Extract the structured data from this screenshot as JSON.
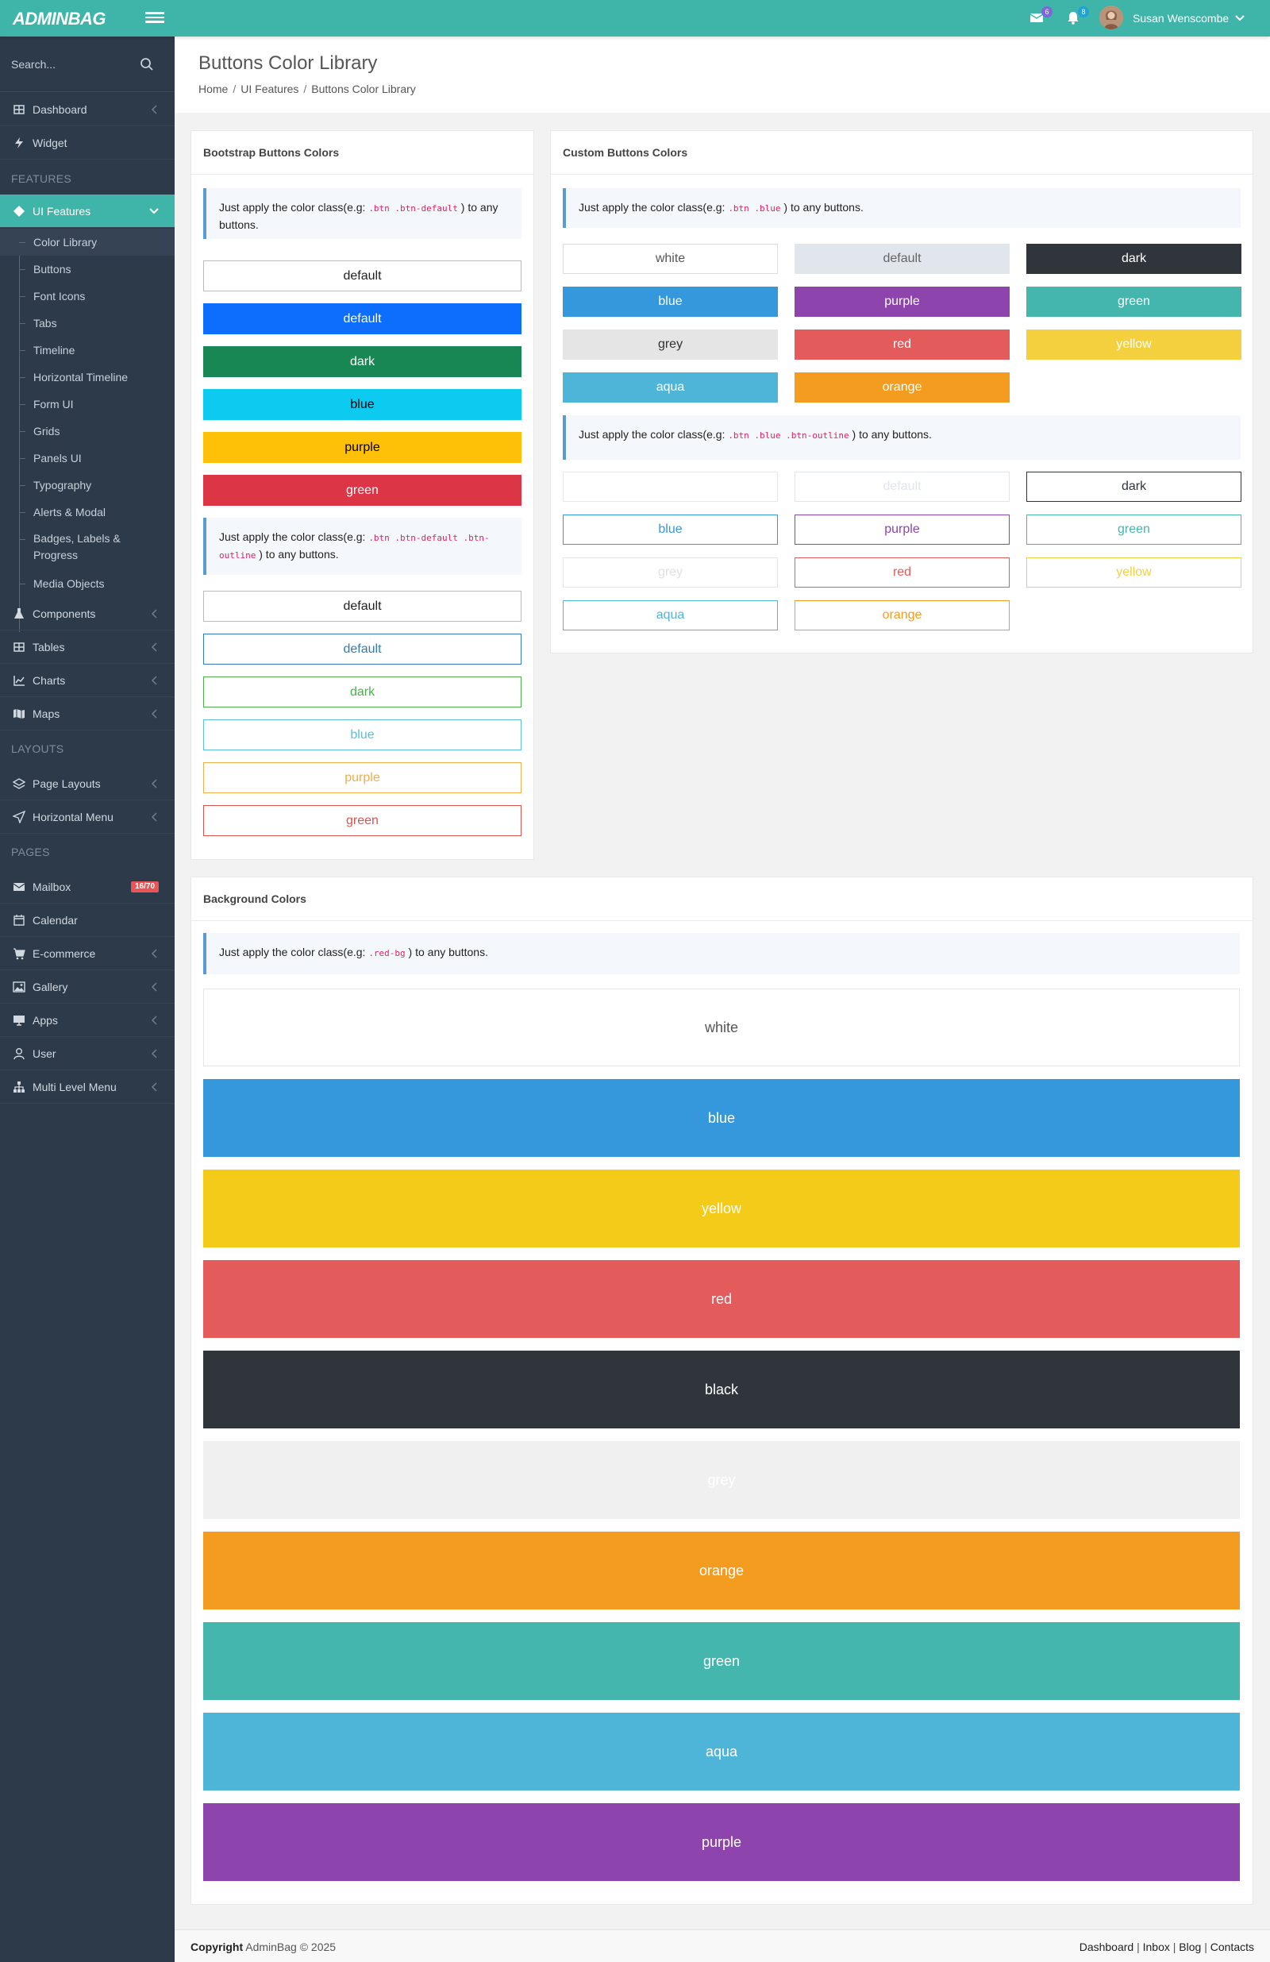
{
  "header": {
    "logo": "ADMINBAG",
    "mail_badge": "6",
    "bell_badge": "8",
    "user_name": "Susan Wenscombe"
  },
  "sidebar": {
    "search_placeholder": "Search...",
    "items_top": [
      {
        "label": "Dashboard",
        "icon": "dashboard-icon"
      },
      {
        "label": "Widget",
        "icon": "bolt-icon"
      }
    ],
    "section_features": "FEATURES",
    "ui_features": "UI Features",
    "sub_items": [
      "Color Library",
      "Buttons",
      "Font Icons",
      "Tabs",
      "Timeline",
      "Horizontal Timeline",
      "Form UI",
      "Grids",
      "Panels UI",
      "Typography",
      "Alerts & Modal",
      "Badges, Labels &",
      "Progress",
      "Media Objects"
    ],
    "items_features": [
      {
        "label": "Components",
        "icon": "flask-icon"
      },
      {
        "label": "Tables",
        "icon": "table-icon"
      },
      {
        "label": "Charts",
        "icon": "chart-icon"
      },
      {
        "label": "Maps",
        "icon": "map-icon"
      }
    ],
    "section_layouts": "LAYOUTS",
    "items_layouts": [
      {
        "label": "Page Layouts",
        "icon": "layers-icon"
      },
      {
        "label": "Horizontal Menu",
        "icon": "send-icon"
      }
    ],
    "section_pages": "PAGES",
    "items_pages": [
      {
        "label": "Mailbox",
        "icon": "envelope-icon"
      },
      {
        "label": "Calendar",
        "icon": "calendar-icon"
      },
      {
        "label": "E-commerce",
        "icon": "cart-icon"
      },
      {
        "label": "Gallery",
        "icon": "image-icon"
      },
      {
        "label": "Apps",
        "icon": "monitor-icon"
      },
      {
        "label": "User",
        "icon": "user-icon"
      },
      {
        "label": "Multi Level Menu",
        "icon": "sitemap-icon"
      }
    ],
    "mailbox_badge": "16/70"
  },
  "page": {
    "title": "Buttons Color Library",
    "breadcrumb": [
      "Home",
      "UI Features",
      "Buttons Color Library"
    ]
  },
  "bootstrap_card": {
    "title": "Bootstrap Buttons Colors",
    "note1_pre": "Just apply the color class(e.g: ",
    "note1_code": ".btn .btn-default",
    "note1_post": " ) to any buttons.",
    "solid_buttons": [
      {
        "label": "default",
        "bg": "#ffffff",
        "fg": "#222222",
        "border": "#bbbbbb"
      },
      {
        "label": "default",
        "bg": "#0d6efd",
        "fg": "#ffffff",
        "border": "#0d6efd"
      },
      {
        "label": "dark",
        "bg": "#198754",
        "fg": "#ffffff",
        "border": "#198754"
      },
      {
        "label": "blue",
        "bg": "#0dcaf0",
        "fg": "#000000",
        "border": "#0dcaf0"
      },
      {
        "label": "purple",
        "bg": "#ffc107",
        "fg": "#000000",
        "border": "#ffc107"
      },
      {
        "label": "green",
        "bg": "#dc3545",
        "fg": "#ffffff",
        "border": "#dc3545"
      }
    ],
    "note2_pre": "Just apply the color class(e.g: ",
    "note2_code": ".btn .btn-default .btn-outline",
    "note2_post": " ) to any buttons.",
    "outline_buttons": [
      {
        "label": "default",
        "color": "#222222",
        "border": "#bbbbbb"
      },
      {
        "label": "default",
        "color": "#337ab7",
        "border": "#337ab7"
      },
      {
        "label": "dark",
        "color": "#4cae4c",
        "border": "#4cae4c"
      },
      {
        "label": "blue",
        "color": "#5bc0de",
        "border": "#5bc0de"
      },
      {
        "label": "purple",
        "color": "#f0ad4e",
        "border": "#f0ad4e"
      },
      {
        "label": "green",
        "color": "#d9534f",
        "border": "#d9534f"
      }
    ]
  },
  "custom_card": {
    "title": "Custom Buttons Colors",
    "note1_pre": "Just apply the color class(e.g: ",
    "note1_code": ".btn .blue",
    "note1_post": " ) to any buttons.",
    "solid_buttons": [
      {
        "label": "white",
        "bg": "#ffffff",
        "fg": "#555555",
        "border": "#dddddd"
      },
      {
        "label": "default",
        "bg": "#e1e5ec",
        "fg": "#666666",
        "border": "#e1e5ec"
      },
      {
        "label": "dark",
        "bg": "#2f353b",
        "fg": "#ffffff",
        "border": "#2f353b"
      },
      {
        "label": "blue",
        "bg": "#3598dc",
        "fg": "#ffffff",
        "border": "#3598dc"
      },
      {
        "label": "purple",
        "bg": "#8e44ad",
        "fg": "#ffffff",
        "border": "#8e44ad"
      },
      {
        "label": "green",
        "bg": "#44b6ae",
        "fg": "#ffffff",
        "border": "#44b6ae"
      },
      {
        "label": "grey",
        "bg": "#e5e5e5",
        "fg": "#333333",
        "border": "#e5e5e5"
      },
      {
        "label": "red",
        "bg": "#e35b5a",
        "fg": "#ffffff",
        "border": "#e35b5a"
      },
      {
        "label": "yellow",
        "bg": "#f4d03f",
        "fg": "#ffffff",
        "border": "#f4d03f"
      },
      {
        "label": "aqua",
        "bg": "#4fb5d8",
        "fg": "#ffffff",
        "border": "#4fb5d8"
      },
      {
        "label": "orange",
        "bg": "#f39c1f",
        "fg": "#ffffff",
        "border": "#f39c1f"
      }
    ],
    "note2_pre": "Just apply the color class(e.g: ",
    "note2_code": ".btn .blue .btn-outline",
    "note2_post": " ) to any buttons.",
    "outline_buttons": [
      {
        "label": "",
        "color": "#dddddd",
        "border": "#e8e8e8"
      },
      {
        "label": "default",
        "color": "#e1e5ec",
        "border": "#e1e5ec"
      },
      {
        "label": "dark",
        "color": "#2f353b",
        "border": "#2f353b"
      },
      {
        "label": "blue",
        "color": "#3598dc",
        "border": "#3598dc"
      },
      {
        "label": "purple",
        "color": "#8e44ad",
        "border": "#8e44ad"
      },
      {
        "label": "green",
        "color": "#44b6ae",
        "border": "#44b6ae"
      },
      {
        "label": "grey",
        "color": "#e0e0e0",
        "border": "#e5e5e5"
      },
      {
        "label": "red",
        "color": "#e35b5a",
        "border": "#e35b5a"
      },
      {
        "label": "yellow",
        "color": "#f4d03f",
        "border": "#f4d03f"
      },
      {
        "label": "aqua",
        "color": "#4fb5d8",
        "border": "#4fb5d8"
      },
      {
        "label": "orange",
        "color": "#f39c1f",
        "border": "#f39c1f"
      }
    ]
  },
  "background_card": {
    "title": "Background Colors",
    "note_pre": "Just apply the color class(e.g: ",
    "note_code": ".red-bg",
    "note_post": " ) to any buttons.",
    "blocks": [
      {
        "label": "white",
        "bg": "#ffffff",
        "fg": "#555555"
      },
      {
        "label": "blue",
        "bg": "#3598dc",
        "fg": "#ffffff"
      },
      {
        "label": "yellow",
        "bg": "#f4cb19",
        "fg": "#ffffff"
      },
      {
        "label": "red",
        "bg": "#e35b5a",
        "fg": "#ffffff"
      },
      {
        "label": "black",
        "bg": "#2f353b",
        "fg": "#ffffff"
      },
      {
        "label": "grey",
        "bg": "#f0f0f0",
        "fg": "#ffffff"
      },
      {
        "label": "orange",
        "bg": "#f39c1f",
        "fg": "#ffffff"
      },
      {
        "label": "green",
        "bg": "#44b6ae",
        "fg": "#ffffff"
      },
      {
        "label": "aqua",
        "bg": "#4fb5d8",
        "fg": "#ffffff"
      },
      {
        "label": "purple",
        "bg": "#8e44ad",
        "fg": "#ffffff"
      }
    ]
  },
  "footer": {
    "copyright_label": "Copyright",
    "copyright_text": " AdminBag © 2025",
    "links": [
      "Dashboard",
      "Inbox",
      "Blog",
      "Contacts"
    ]
  },
  "colors": {
    "accent": "#3fb5a9",
    "sidebar": "#2d3a4a",
    "badge": "#ea5455"
  }
}
